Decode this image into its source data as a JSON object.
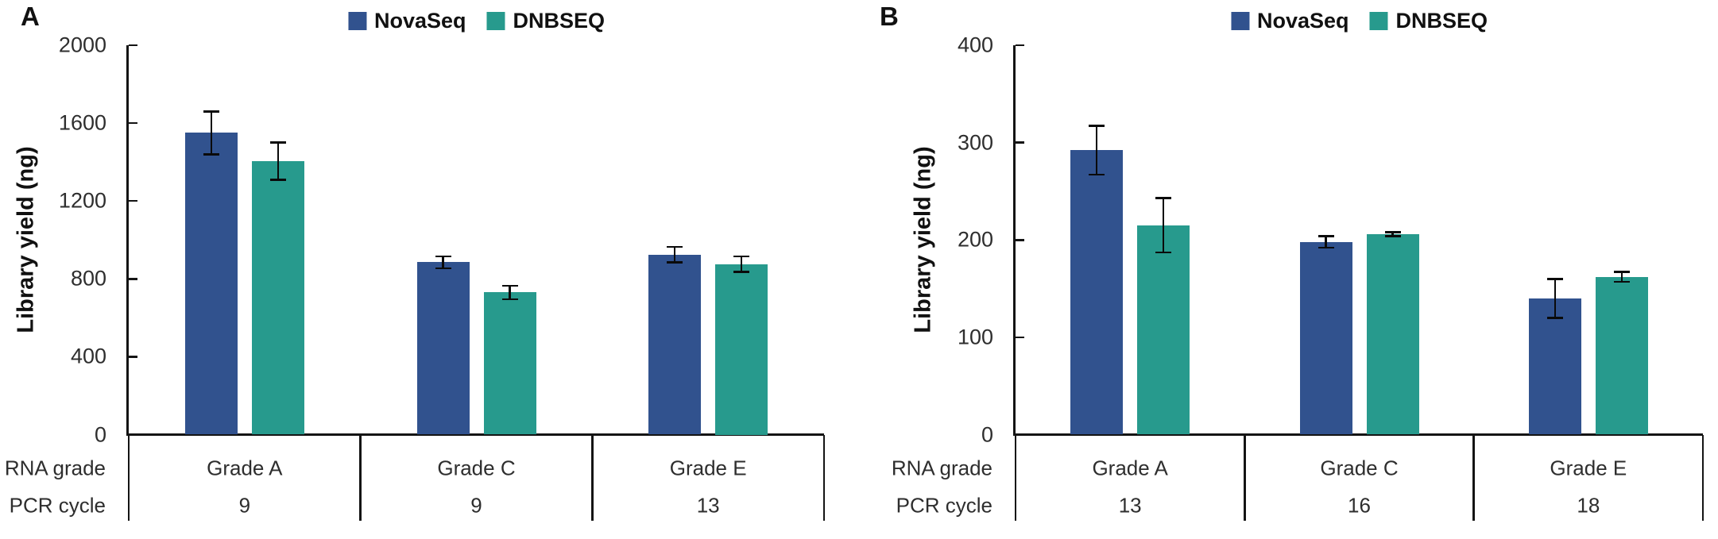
{
  "chart_data": [
    {
      "type": "bar",
      "panel": "A",
      "ylabel": "Library yield (ng)",
      "ylim": [
        0,
        2000
      ],
      "ytick_step": 400,
      "grid": false,
      "legend_position": "top",
      "legend": [
        {
          "name": "NovaSeq",
          "color": "#31528E"
        },
        {
          "name": "DNBSEQ",
          "color": "#279A8D"
        }
      ],
      "row_labels": [
        "RNA grade",
        "PCR cycle"
      ],
      "categories": [
        "Grade A",
        "Grade C",
        "Grade E"
      ],
      "pcr_cycles": [
        "9",
        "9",
        "13"
      ],
      "series": [
        {
          "name": "NovaSeq",
          "values": [
            1550,
            885,
            925
          ],
          "errors": [
            110,
            30,
            40
          ]
        },
        {
          "name": "DNBSEQ",
          "values": [
            1405,
            730,
            875
          ],
          "errors": [
            95,
            35,
            40
          ]
        }
      ]
    },
    {
      "type": "bar",
      "panel": "B",
      "ylabel": "Library yield (ng)",
      "ylim": [
        0,
        400
      ],
      "ytick_step": 100,
      "grid": false,
      "legend_position": "top",
      "legend": [
        {
          "name": "NovaSeq",
          "color": "#31528E"
        },
        {
          "name": "DNBSEQ",
          "color": "#279A8D"
        }
      ],
      "row_labels": [
        "RNA grade",
        "PCR cycle"
      ],
      "categories": [
        "Grade A",
        "Grade C",
        "Grade E"
      ],
      "pcr_cycles": [
        "13",
        "16",
        "18"
      ],
      "series": [
        {
          "name": "NovaSeq",
          "values": [
            292,
            198,
            140
          ],
          "errors": [
            25,
            6,
            20
          ]
        },
        {
          "name": "DNBSEQ",
          "values": [
            215,
            206,
            162
          ],
          "errors": [
            28,
            2,
            5
          ]
        }
      ]
    }
  ]
}
